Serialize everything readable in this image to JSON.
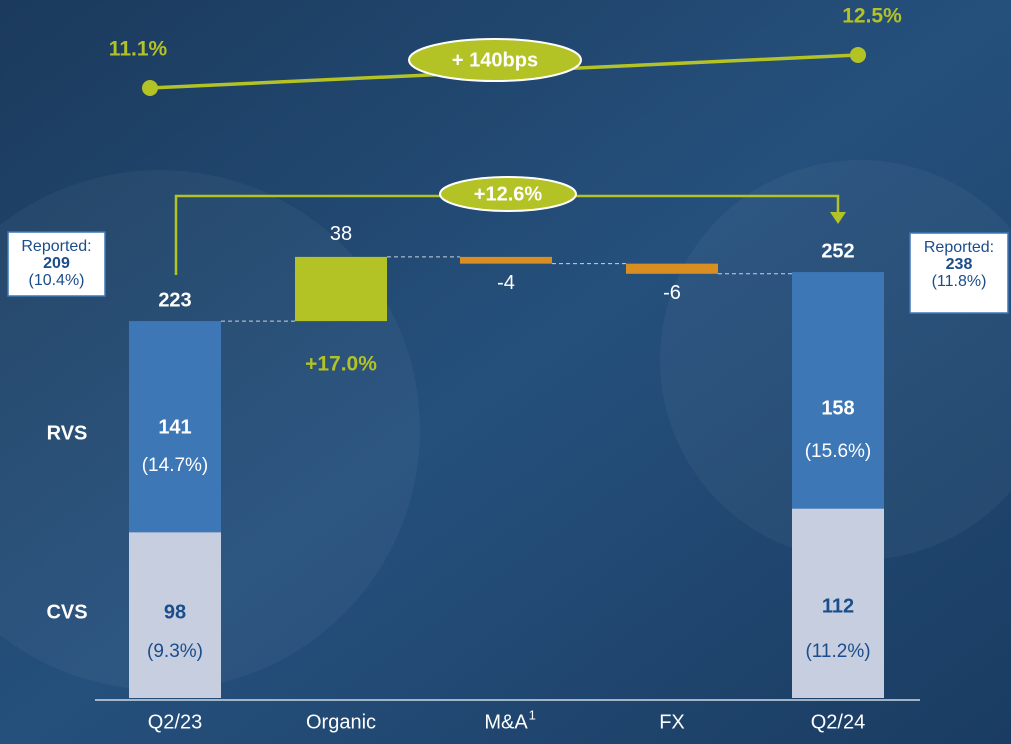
{
  "chart_data": {
    "type": "waterfall",
    "categories": [
      "Q2/23",
      "Organic",
      "M&A",
      "FX",
      "Q2/24"
    ],
    "category_footnotes": [
      null,
      null,
      "1",
      null,
      null
    ],
    "values": [
      223,
      38,
      -4,
      -6,
      252
    ],
    "kinds": [
      "total",
      "delta",
      "delta",
      "delta",
      "total"
    ],
    "colors": {
      "increase": "#b3c225",
      "decrease": "#d98e22",
      "total": "#3e77b6"
    },
    "segments": [
      {
        "name": "RVS",
        "color": "#3e77b6",
        "values": [
          141,
          null,
          null,
          null,
          158
        ],
        "margin_labels": [
          "(14.7%)",
          null,
          null,
          null,
          "(15.6%)"
        ]
      },
      {
        "name": "CVS",
        "color": "#c6cee0",
        "values": [
          98,
          null,
          null,
          null,
          112
        ],
        "margin_labels": [
          "(9.3%)",
          null,
          null,
          null,
          "(11.2%)"
        ]
      }
    ],
    "ylim": [
      0,
      413
    ],
    "reported": [
      {
        "label": "Reported:",
        "value": "209",
        "margin": "(10.4%)"
      },
      {
        "label": "Reported:",
        "value": "238",
        "margin": "(11.8%)"
      }
    ],
    "organic_growth": "+17.0%",
    "total_growth": "+12.6%",
    "margin": {
      "values": [
        11.1,
        12.5
      ],
      "value_labels": [
        "11.1%",
        "12.5%"
      ],
      "change": "+ 140bps",
      "color": "#b3c225"
    }
  }
}
